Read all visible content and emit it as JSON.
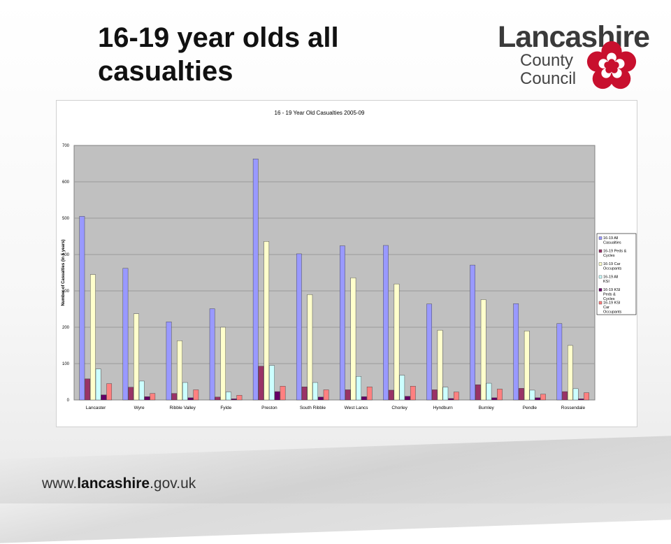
{
  "slide": {
    "title_line1": "16-19 year olds all",
    "title_line2": "casualties",
    "footer_prefix": "www.",
    "footer_bold": "lancashire",
    "footer_suffix": ".gov.uk"
  },
  "logo": {
    "word": "Lancashire",
    "line1": "County",
    "line2": "Council",
    "brand_color": "#3a3a3a",
    "rose_color": "#c8102e"
  },
  "chart_data": {
    "type": "bar",
    "title": "16 - 19 Year Old Casualties 2005-09",
    "xlabel": "",
    "ylabel": "Number of Casualties (in 5 years)",
    "ylim": [
      0,
      700
    ],
    "yticks": [
      0,
      100,
      200,
      300,
      400,
      500,
      600,
      700
    ],
    "grid": true,
    "legend_position": "right",
    "plot_background": "#c0c0c0",
    "categories": [
      "Lancaster",
      "Wyre",
      "Ribble Valley",
      "Fylde",
      "Preston",
      "South Ribble",
      "West Lancs",
      "Chorley",
      "Hyndburn",
      "Burnley",
      "Pendle",
      "Rossendale"
    ],
    "series": [
      {
        "name": "16-19 All Casualties",
        "color": "#9999ff",
        "values": [
          505,
          362,
          215,
          251,
          663,
          402,
          424,
          425,
          264,
          371,
          265,
          210
        ]
      },
      {
        "name": "16-19 Peds & Cycles",
        "color": "#993366",
        "values": [
          58,
          35,
          18,
          8,
          93,
          36,
          28,
          27,
          28,
          42,
          32,
          23
        ]
      },
      {
        "name": "16-19 Car Occupants",
        "color": "#ffffcc",
        "values": [
          345,
          237,
          163,
          200,
          436,
          290,
          336,
          319,
          192,
          276,
          190,
          150
        ]
      },
      {
        "name": "16-19 All KSI",
        "color": "#ccffff",
        "values": [
          85,
          52,
          48,
          22,
          95,
          48,
          65,
          68,
          35,
          46,
          27,
          31
        ]
      },
      {
        "name": "16-19 KSI Peds & Cycles",
        "color": "#660066",
        "values": [
          14,
          9,
          6,
          3,
          23,
          8,
          9,
          10,
          4,
          6,
          6,
          3
        ]
      },
      {
        "name": "16-19 KSI Car Occupants",
        "color": "#ff8080",
        "values": [
          45,
          18,
          28,
          13,
          38,
          28,
          36,
          38,
          22,
          30,
          16,
          20
        ]
      }
    ]
  }
}
